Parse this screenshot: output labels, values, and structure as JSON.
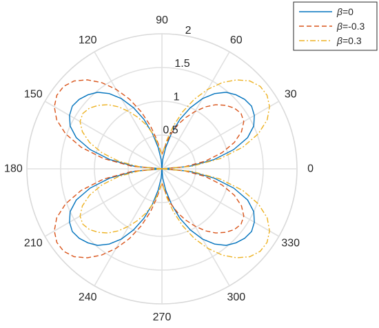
{
  "chart_data": {
    "type": "polar-line",
    "angle_ticks": [
      "0",
      "30",
      "60",
      "90",
      "120",
      "150",
      "180",
      "210",
      "240",
      "270",
      "300",
      "330"
    ],
    "angle_tick_values_deg": [
      0,
      30,
      60,
      90,
      120,
      150,
      180,
      210,
      240,
      270,
      300,
      330
    ],
    "radial_ticks": [
      "0.5",
      "1",
      "1.5",
      "2"
    ],
    "radial_tick_values": [
      0.5,
      1,
      1.5,
      2
    ],
    "rlim": [
      0,
      2
    ],
    "grid": true,
    "legend_position": "top-right",
    "series": [
      {
        "name": "β=0",
        "legend_symbol": "β",
        "legend_value": "=0",
        "color": "#0072BD",
        "line_style": "solid",
        "theta_deg": [
          0,
          5,
          10,
          15,
          20,
          25,
          30,
          35,
          40,
          45,
          50,
          55,
          60,
          65,
          70,
          75,
          80,
          85,
          90
        ],
        "r": [
          0.0,
          0.4,
          0.78,
          1.1,
          1.35,
          1.5,
          1.58,
          1.62,
          1.6,
          1.55,
          1.48,
          1.36,
          1.2,
          1.0,
          0.78,
          0.54,
          0.32,
          0.14,
          0.0
        ]
      },
      {
        "name": "β=-0.3",
        "legend_symbol": "β",
        "legend_value": "=-0.3",
        "color": "#D95319",
        "line_style": "dashed",
        "theta_deg": [
          0,
          5,
          10,
          15,
          20,
          25,
          30,
          35,
          40,
          45,
          50,
          55,
          60,
          65,
          70,
          75,
          80,
          85,
          90
        ],
        "r": [
          0.0,
          0.33,
          0.65,
          0.92,
          1.14,
          1.3,
          1.4,
          1.43,
          1.4,
          1.33,
          1.24,
          1.12,
          0.98,
          0.84,
          0.7,
          0.55,
          0.4,
          0.27,
          0.21
        ]
      },
      {
        "name": "β=0.3",
        "legend_symbol": "β",
        "legend_value": "=0.3",
        "color": "#EDB120",
        "line_style": "dashdot",
        "theta_deg": [
          0,
          5,
          10,
          15,
          20,
          25,
          30,
          35,
          40,
          45,
          50,
          55,
          60,
          65,
          70,
          75,
          80,
          85,
          90
        ],
        "r": [
          0.0,
          0.45,
          0.88,
          1.24,
          1.52,
          1.72,
          1.84,
          1.9,
          1.9,
          1.84,
          1.72,
          1.56,
          1.36,
          1.14,
          0.9,
          0.66,
          0.44,
          0.28,
          0.21
        ]
      }
    ],
    "symmetry": "mirror about 0 and 180 degree axis and about 90 degree axis, except right/left halves swap shapes for nonzero beta"
  }
}
